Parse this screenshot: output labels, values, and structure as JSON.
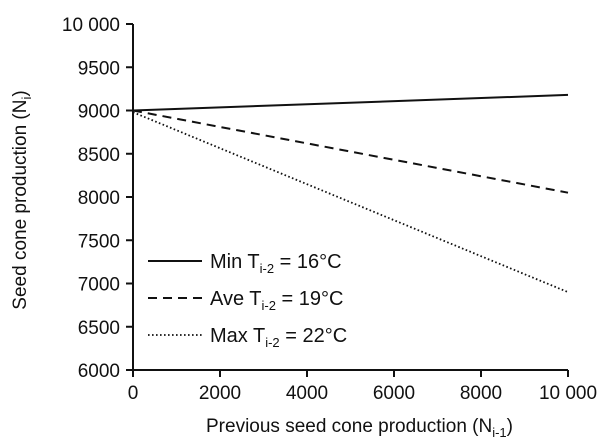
{
  "chart_data": {
    "type": "line",
    "title": "",
    "xlabel": {
      "text": "Previous seed cone production (N",
      "sub": "i-1",
      "suffix": ")"
    },
    "ylabel": {
      "text": "Seed cone production (N",
      "sub": "i",
      "suffix": ")"
    },
    "xlim": [
      0,
      10000
    ],
    "ylim": [
      6000,
      10000
    ],
    "xticks": [
      0,
      2000,
      4000,
      6000,
      8000,
      10000
    ],
    "xtick_labels": [
      "0",
      "2000",
      "4000",
      "6000",
      "8000",
      "10 000"
    ],
    "yticks": [
      6000,
      6500,
      7000,
      7500,
      8000,
      8500,
      9000,
      9500,
      10000
    ],
    "ytick_labels": [
      "6000",
      "6500",
      "7000",
      "7500",
      "8000",
      "8500",
      "9000",
      "9500",
      "10 000"
    ],
    "grid": false,
    "legend_position": "bottom-left",
    "series": [
      {
        "name": "Min",
        "temp_var": "T",
        "temp_sub": "i-2",
        "temp_value": "= 16°C",
        "style": "solid",
        "x": [
          0,
          10000
        ],
        "y": [
          9000,
          9180
        ]
      },
      {
        "name": "Ave",
        "temp_var": "T",
        "temp_sub": "i-2",
        "temp_value": "= 19°C",
        "style": "dashed",
        "x": [
          0,
          10000
        ],
        "y": [
          9000,
          8050
        ]
      },
      {
        "name": "Max",
        "temp_var": "T",
        "temp_sub": "i-2",
        "temp_value": "= 22°C",
        "style": "dotted",
        "x": [
          0,
          10000
        ],
        "y": [
          8980,
          6900
        ]
      }
    ],
    "colors": {
      "axis": "#111111",
      "line": "#111111"
    }
  }
}
